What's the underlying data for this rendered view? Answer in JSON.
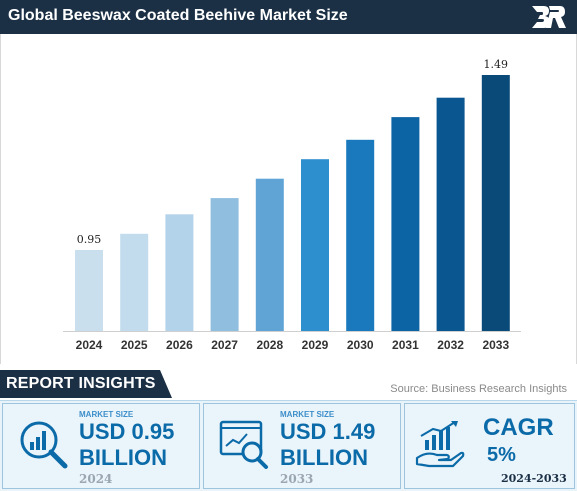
{
  "header": {
    "title": "Global Beeswax Coated Beehive Market Size",
    "logo_icon": "br-logo-icon"
  },
  "chart_data": {
    "type": "bar",
    "categories": [
      "2024",
      "2025",
      "2026",
      "2027",
      "2028",
      "2029",
      "2030",
      "2031",
      "2032",
      "2033"
    ],
    "values": [
      0.95,
      1.0,
      1.06,
      1.11,
      1.17,
      1.23,
      1.29,
      1.36,
      1.42,
      1.49
    ],
    "data_labels": {
      "first": "0.95",
      "last": "1.49"
    },
    "colors": [
      "#c9dfee",
      "#c2dced",
      "#b3d3ea",
      "#8fbedf",
      "#5fa4d5",
      "#2e8fcf",
      "#1a79bd",
      "#0d64a4",
      "#0a5690",
      "#0a4a78"
    ],
    "title": "",
    "xlabel": "",
    "ylabel": "",
    "ylim": [
      0.7,
      1.53
    ],
    "grid": false,
    "legend": "none"
  },
  "insights": {
    "label": "REPORT INSIGHTS",
    "source": "Source: Business Research Insights"
  },
  "cards": [
    {
      "icon": "magnifier-chart-icon",
      "small": "MARKET SIZE",
      "line1": "USD 0.95",
      "line2": "BILLION",
      "year": "2024"
    },
    {
      "icon": "dashboard-magnifier-icon",
      "small": "MARKET SIZE",
      "line1": "USD 1.49",
      "line2": "BILLION",
      "year": "2033"
    },
    {
      "icon": "growth-hand-icon",
      "label": "CAGR",
      "value": "5%",
      "period": "2024-2033"
    }
  ]
}
